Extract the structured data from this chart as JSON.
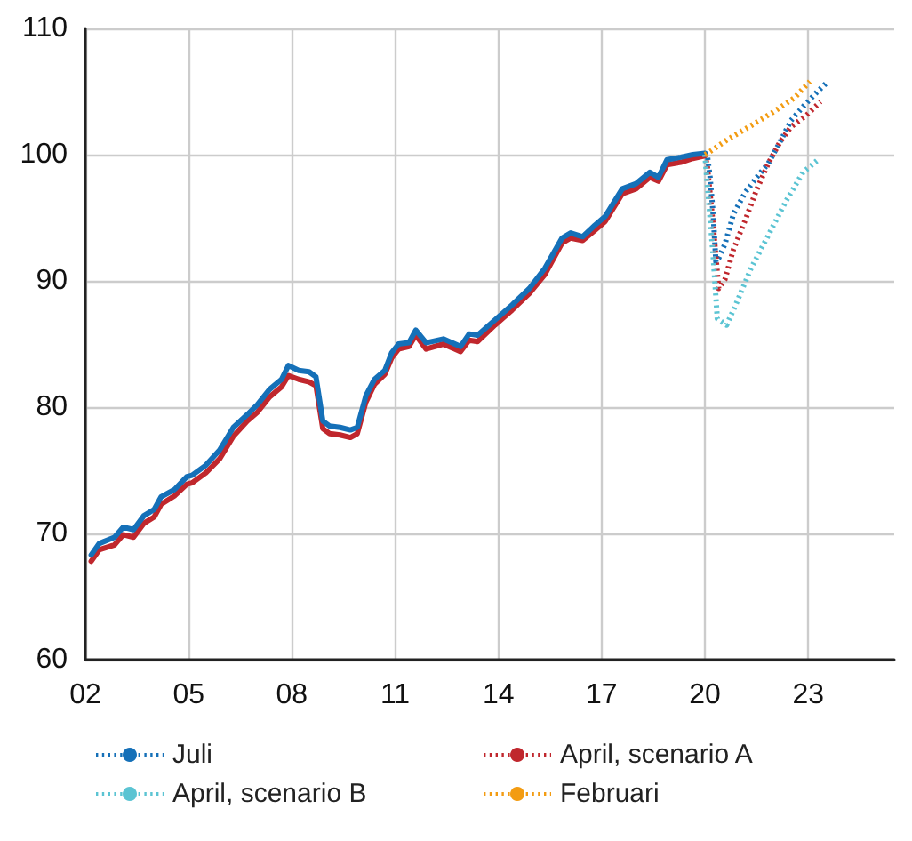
{
  "chart_data": {
    "type": "line",
    "xlim": [
      2002,
      2025.5
    ],
    "xticks": [
      {
        "value": 2002,
        "label": "02"
      },
      {
        "value": 2005,
        "label": "05"
      },
      {
        "value": 2008,
        "label": "08"
      },
      {
        "value": 2011,
        "label": "11"
      },
      {
        "value": 2014,
        "label": "14"
      },
      {
        "value": 2017,
        "label": "17"
      },
      {
        "value": 2020,
        "label": "20"
      },
      {
        "value": 2023,
        "label": "23"
      }
    ],
    "ylim": [
      60,
      110
    ],
    "yticks": [
      60,
      70,
      80,
      90,
      100,
      110
    ],
    "grid": true,
    "legend": "bottom",
    "marker": "none",
    "series": [
      {
        "color": "#c0272d",
        "line_style": "solid",
        "x": [
          2002.17,
          2002.4,
          2002.85,
          2003.1,
          2003.4,
          2003.7,
          2004.0,
          2004.2,
          2004.6,
          2004.95,
          2005.1,
          2005.5,
          2005.9,
          2006.3,
          2006.7,
          2007.0,
          2007.35,
          2007.7,
          2007.9,
          2008.2,
          2008.5,
          2008.7,
          2008.9,
          2009.1,
          2009.4,
          2009.7,
          2009.9,
          2010.15,
          2010.4,
          2010.7,
          2010.9,
          2011.1,
          2011.4,
          2011.6,
          2011.9,
          2012.4,
          2012.9,
          2013.15,
          2013.4,
          2013.9,
          2014.4,
          2014.9,
          2015.35,
          2015.85,
          2016.1,
          2016.45,
          2016.8,
          2017.1,
          2017.6,
          2018.0,
          2018.4,
          2018.65,
          2018.9,
          2019.3,
          2019.65,
          2020.0
        ],
        "values": [
          67.8,
          68.7,
          69.1,
          69.9,
          69.7,
          70.8,
          71.3,
          72.3,
          73.0,
          73.9,
          74.0,
          74.8,
          75.9,
          77.7,
          78.9,
          79.6,
          80.8,
          81.6,
          82.5,
          82.2,
          82.0,
          81.7,
          78.3,
          77.9,
          77.8,
          77.6,
          77.9,
          80.4,
          81.8,
          82.6,
          83.9,
          84.6,
          84.8,
          85.7,
          84.6,
          85.0,
          84.4,
          85.3,
          85.2,
          86.5,
          87.7,
          89.0,
          90.5,
          93.0,
          93.4,
          93.2,
          94.0,
          94.7,
          96.9,
          97.3,
          98.2,
          97.9,
          99.2,
          99.4,
          99.7,
          99.9
        ]
      },
      {
        "color": "#1570b8",
        "line_style": "solid",
        "x": [
          2002.17,
          2002.4,
          2002.85,
          2003.1,
          2003.4,
          2003.7,
          2004.0,
          2004.2,
          2004.6,
          2004.95,
          2005.1,
          2005.5,
          2005.9,
          2006.3,
          2006.7,
          2007.0,
          2007.35,
          2007.7,
          2007.9,
          2008.2,
          2008.5,
          2008.7,
          2008.9,
          2009.1,
          2009.4,
          2009.7,
          2009.9,
          2010.15,
          2010.4,
          2010.7,
          2010.9,
          2011.1,
          2011.4,
          2011.6,
          2011.9,
          2012.4,
          2012.9,
          2013.15,
          2013.4,
          2013.9,
          2014.4,
          2014.9,
          2015.35,
          2015.85,
          2016.1,
          2016.45,
          2016.8,
          2017.1,
          2017.6,
          2018.0,
          2018.4,
          2018.65,
          2018.9,
          2019.3,
          2019.65,
          2020.0
        ],
        "values": [
          68.3,
          69.2,
          69.7,
          70.5,
          70.3,
          71.4,
          71.9,
          72.9,
          73.5,
          74.5,
          74.6,
          75.4,
          76.6,
          78.4,
          79.4,
          80.2,
          81.4,
          82.2,
          83.3,
          82.9,
          82.8,
          82.4,
          78.9,
          78.5,
          78.4,
          78.2,
          78.4,
          80.9,
          82.2,
          82.9,
          84.3,
          85.0,
          85.1,
          86.1,
          85.1,
          85.4,
          84.8,
          85.8,
          85.7,
          86.9,
          88.1,
          89.4,
          91.0,
          93.4,
          93.8,
          93.5,
          94.4,
          95.1,
          97.3,
          97.7,
          98.6,
          98.2,
          99.6,
          99.8,
          100.0,
          100.1
        ]
      },
      {
        "name": "Juli",
        "color": "#1570b8",
        "line_style": "dotted",
        "x": [
          2020.0,
          2020.07,
          2020.15,
          2020.24,
          2020.32,
          2020.4,
          2020.58,
          2020.83,
          2021.17,
          2021.5,
          2021.84,
          2022.18,
          2022.5,
          2022.85,
          2023.27,
          2023.58
        ],
        "values": [
          100.1,
          100.0,
          98.2,
          95.3,
          91.5,
          91.8,
          92.9,
          95.3,
          97.0,
          98.2,
          99.3,
          101.0,
          102.7,
          103.8,
          105.0,
          105.8
        ]
      },
      {
        "name": "April, scenario A",
        "color": "#c0272d",
        "line_style": "dotted",
        "x": [
          2020.0,
          2020.07,
          2020.24,
          2020.4,
          2020.58,
          2020.83,
          2021.17,
          2021.5,
          2021.84,
          2022.18,
          2022.5,
          2022.94,
          2023.36
        ],
        "values": [
          100.0,
          99.1,
          94.4,
          89.4,
          90.1,
          92.5,
          94.8,
          97.2,
          99.3,
          101.0,
          102.2,
          103.1,
          104.2
        ]
      },
      {
        "name": "April, scenario B",
        "color": "#5bc4d3",
        "line_style": "dotted",
        "x": [
          2020.0,
          2020.24,
          2020.36,
          2020.63,
          2020.91,
          2021.34,
          2021.84,
          2022.35,
          2022.85,
          2023.33
        ],
        "values": [
          100.0,
          92.0,
          87.0,
          86.5,
          88.2,
          91.0,
          93.6,
          96.3,
          98.6,
          99.7
        ]
      },
      {
        "name": "Februari",
        "color": "#f39c12",
        "line_style": "dotted",
        "x": [
          2020.0,
          2020.07,
          2020.66,
          2021.34,
          2022.0,
          2022.6,
          2023.05
        ],
        "values": [
          100.0,
          100.1,
          101.2,
          102.3,
          103.4,
          104.5,
          105.8
        ]
      }
    ]
  }
}
